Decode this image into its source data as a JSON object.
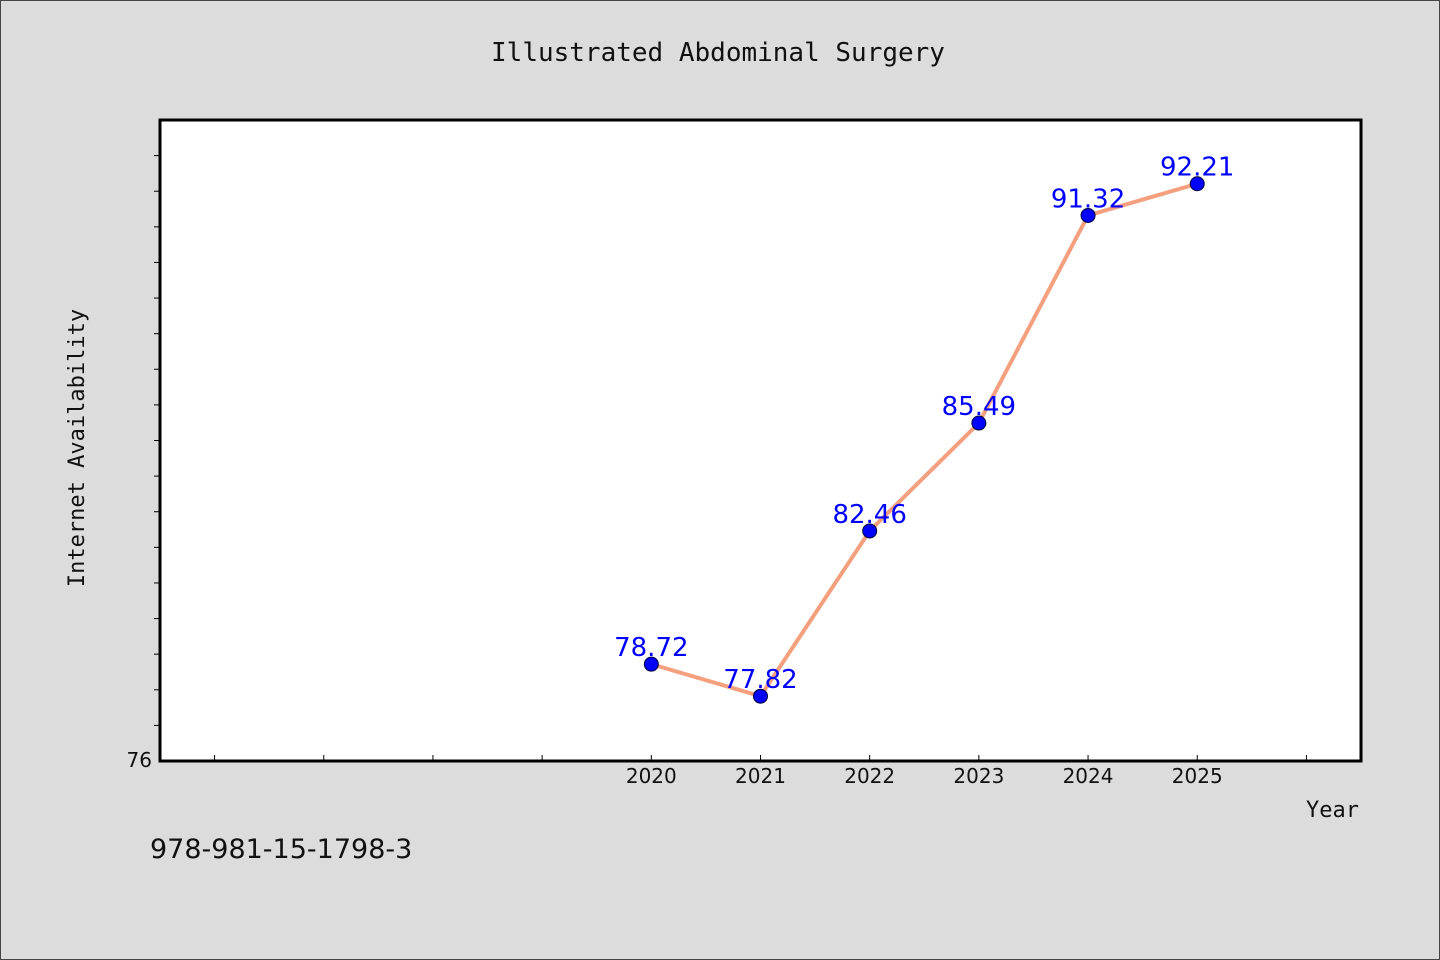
{
  "footer_note": "978-981-15-1798-3",
  "colors": {
    "background": "#dcdcdc",
    "plot_background": "#ffffff",
    "line": "#f4a07f",
    "marker": "#0000ff",
    "data_label": "#0000ff"
  },
  "chart_data": {
    "type": "line",
    "title": "Illustrated Abdominal Surgery",
    "xlabel": "Year",
    "ylabel": "Internet Availability",
    "x": [
      "2020",
      "2021",
      "2022",
      "2023",
      "2024",
      "2025"
    ],
    "series": [
      {
        "values": [
          78.72,
          77.82,
          82.46,
          85.49,
          91.32,
          92.21
        ]
      }
    ],
    "data_labels": [
      "78.72",
      "77.82",
      "82.46",
      "85.49",
      "91.32",
      "92.21"
    ],
    "y_tick_labels": [
      "76"
    ],
    "ylim": [
      76,
      94
    ],
    "xlim": [
      2015.5,
      2026.5
    ],
    "grid": false,
    "legend": "none"
  }
}
